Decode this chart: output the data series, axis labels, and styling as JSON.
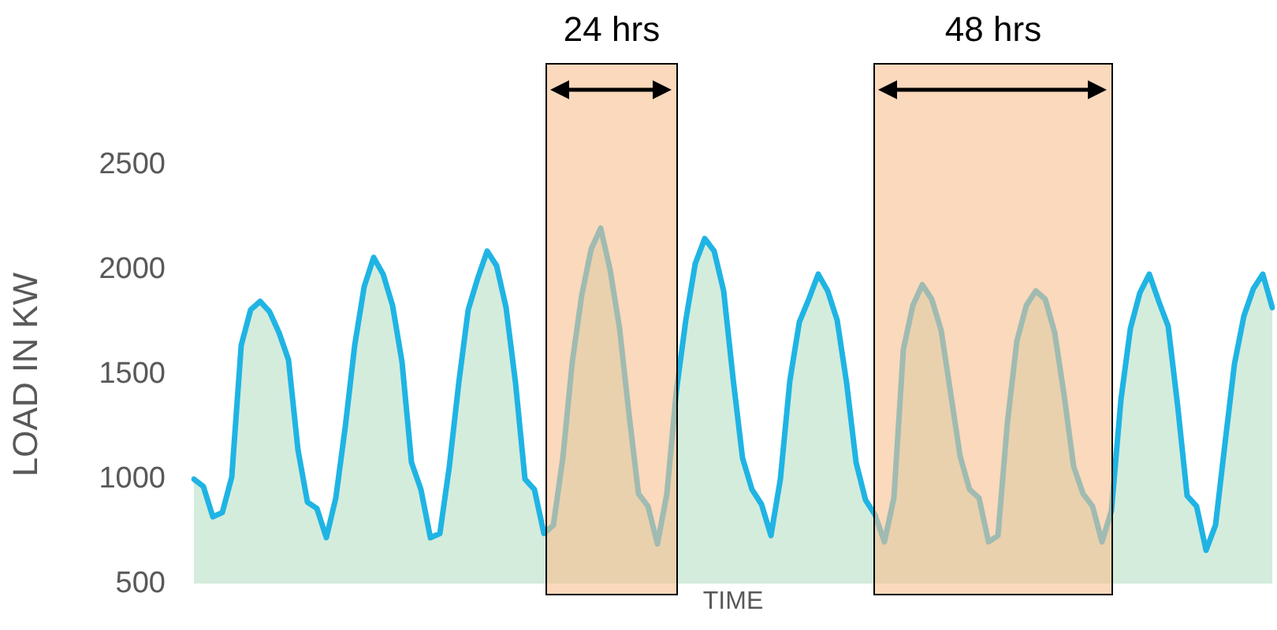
{
  "chart_data": {
    "type": "area",
    "xlabel": "TIME",
    "ylabel": "LOAD IN KW",
    "ylim": [
      500,
      2500
    ],
    "yticks": [
      500,
      1000,
      1500,
      2000,
      2500
    ],
    "tick_labels": "y",
    "grid": false,
    "legend": false,
    "marker": "none",
    "line_style": "solid",
    "categories": [
      null,
      null,
      null,
      null,
      null,
      null,
      null,
      null,
      null,
      null,
      null,
      null,
      null,
      null,
      null,
      null,
      null,
      null,
      null,
      null,
      null,
      null,
      null,
      null,
      null,
      null,
      null,
      null,
      null,
      null,
      null,
      null,
      null,
      null,
      null,
      null,
      null,
      null,
      null,
      null,
      null,
      null,
      null,
      null,
      null,
      null,
      null,
      null,
      null,
      null,
      null,
      null,
      null,
      null,
      null,
      null,
      null,
      null,
      null,
      null,
      null,
      null,
      null,
      null,
      null,
      null,
      null,
      null,
      null,
      null,
      null,
      null,
      null,
      null,
      null,
      null,
      null,
      null,
      null,
      null,
      null,
      null,
      null,
      null,
      null,
      null,
      null,
      null,
      null,
      null,
      null,
      null,
      null,
      null,
      null,
      null,
      null,
      null,
      null,
      null,
      null,
      null,
      null,
      null,
      null,
      null,
      null,
      null,
      null,
      null,
      null,
      null,
      null,
      null,
      null
    ],
    "series": [
      {
        "color": "#1fb4e4",
        "values": [
          1000,
          965,
          820,
          840,
          1010,
          1640,
          1810,
          1850,
          1800,
          1700,
          1570,
          1140,
          890,
          860,
          720,
          910,
          1250,
          1640,
          1920,
          2060,
          1980,
          1830,
          1560,
          1080,
          950,
          720,
          740,
          1060,
          1460,
          1810,
          1960,
          2090,
          2020,
          1820,
          1460,
          1000,
          950,
          740,
          780,
          1100,
          1560,
          1880,
          2100,
          2200,
          2000,
          1720,
          1310,
          930,
          870,
          690,
          930,
          1420,
          1760,
          2030,
          2150,
          2090,
          1900,
          1480,
          1100,
          950,
          880,
          730,
          1000,
          1470,
          1750,
          1860,
          1980,
          1900,
          1760,
          1460,
          1080,
          900,
          830,
          700,
          910,
          1620,
          1830,
          1930,
          1860,
          1710,
          1410,
          1110,
          950,
          910,
          700,
          730,
          1270,
          1660,
          1830,
          1900,
          1860,
          1700,
          1400,
          1060,
          930,
          870,
          700,
          850,
          1380,
          1720,
          1890,
          1980,
          1850,
          1730,
          1350,
          920,
          870,
          660,
          780,
          1170,
          1550,
          1780,
          1910,
          1980,
          1820
        ]
      }
    ],
    "annotations": [
      "24 hrs",
      "48 hrs"
    ]
  }
}
